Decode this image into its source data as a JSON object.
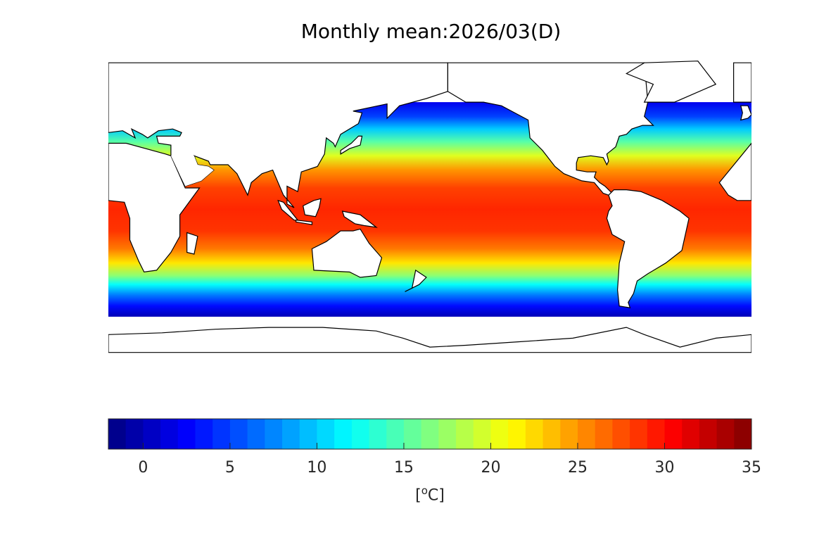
{
  "title": "Monthly mean:2026/03(D)",
  "colorbar": {
    "min": -2,
    "max": 35,
    "step": 1,
    "colormap": "jet",
    "ticks": [
      "0",
      "5",
      "10",
      "15",
      "20",
      "25",
      "30",
      "35"
    ],
    "tick_values": [
      0,
      5,
      10,
      15,
      20,
      25,
      30,
      35
    ],
    "unit_open": "[",
    "unit_degree": "o",
    "unit_letter": "C",
    "unit_close": "]"
  },
  "map": {
    "variable": "sea surface temperature",
    "land_color": "#ffffff",
    "coastline_color": "#000000",
    "lon_range": [
      0,
      360
    ],
    "data_lat_range": [
      -60,
      60
    ]
  }
}
